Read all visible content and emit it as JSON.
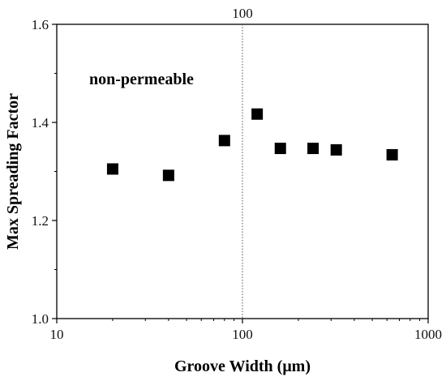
{
  "chart_data": {
    "type": "scatter",
    "xlabel": "Groove Width (μm)",
    "ylabel": "Max Spreading Factor",
    "x_scale": "log",
    "xlim": [
      10,
      1000
    ],
    "ylim": [
      1.0,
      1.6
    ],
    "x_ticks": [
      10,
      100,
      1000
    ],
    "x_tick_labels": [
      "10",
      "100",
      "1000"
    ],
    "y_ticks": [
      1.0,
      1.2,
      1.4,
      1.6
    ],
    "y_tick_labels": [
      "1.0",
      "1.2",
      "1.4",
      "1.6"
    ],
    "grid": false,
    "reference_line": {
      "x": 100,
      "label": "100",
      "style": "dotted"
    },
    "annotation": "non-permeable",
    "series": [
      {
        "marker": "square",
        "color": "#000000",
        "x": [
          20,
          40,
          80,
          120,
          160,
          240,
          320,
          640
        ],
        "y": [
          1.305,
          1.292,
          1.363,
          1.417,
          1.347,
          1.347,
          1.344,
          1.334
        ]
      }
    ]
  }
}
